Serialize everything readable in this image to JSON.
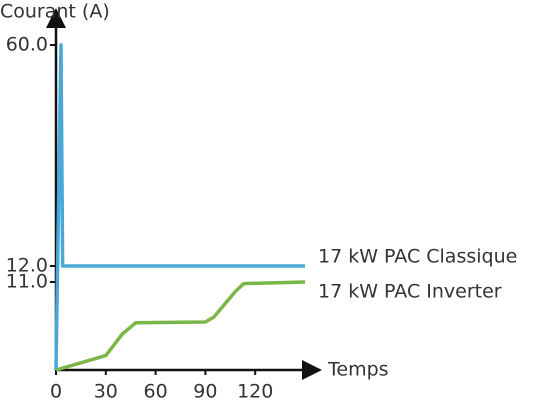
{
  "chart_data": {
    "type": "line",
    "y_label": "Courant (A)",
    "x_label": "Temps",
    "xlim": [
      0,
      150
    ],
    "xticks": [
      0,
      30,
      60,
      90,
      120
    ],
    "ylim": [
      0,
      60
    ],
    "yticks": [
      {
        "value": 11,
        "label": "11.0"
      },
      {
        "value": 12,
        "label": "12.0"
      },
      {
        "value": 60,
        "label": "60.0"
      }
    ],
    "series": [
      {
        "name": "17 kW PAC Classique",
        "color": "#4aa8d8",
        "x": [
          0,
          3,
          4,
          150
        ],
        "values": [
          0,
          60,
          12,
          12
        ]
      },
      {
        "name": "17 kW PAC Inverter",
        "color": "#7ab648",
        "x": [
          0,
          30,
          40,
          48,
          90,
          95,
          108,
          113,
          150
        ],
        "values": [
          0,
          1.8,
          4.5,
          5.9,
          6,
          6.6,
          9.8,
          10.8,
          11
        ]
      }
    ]
  }
}
